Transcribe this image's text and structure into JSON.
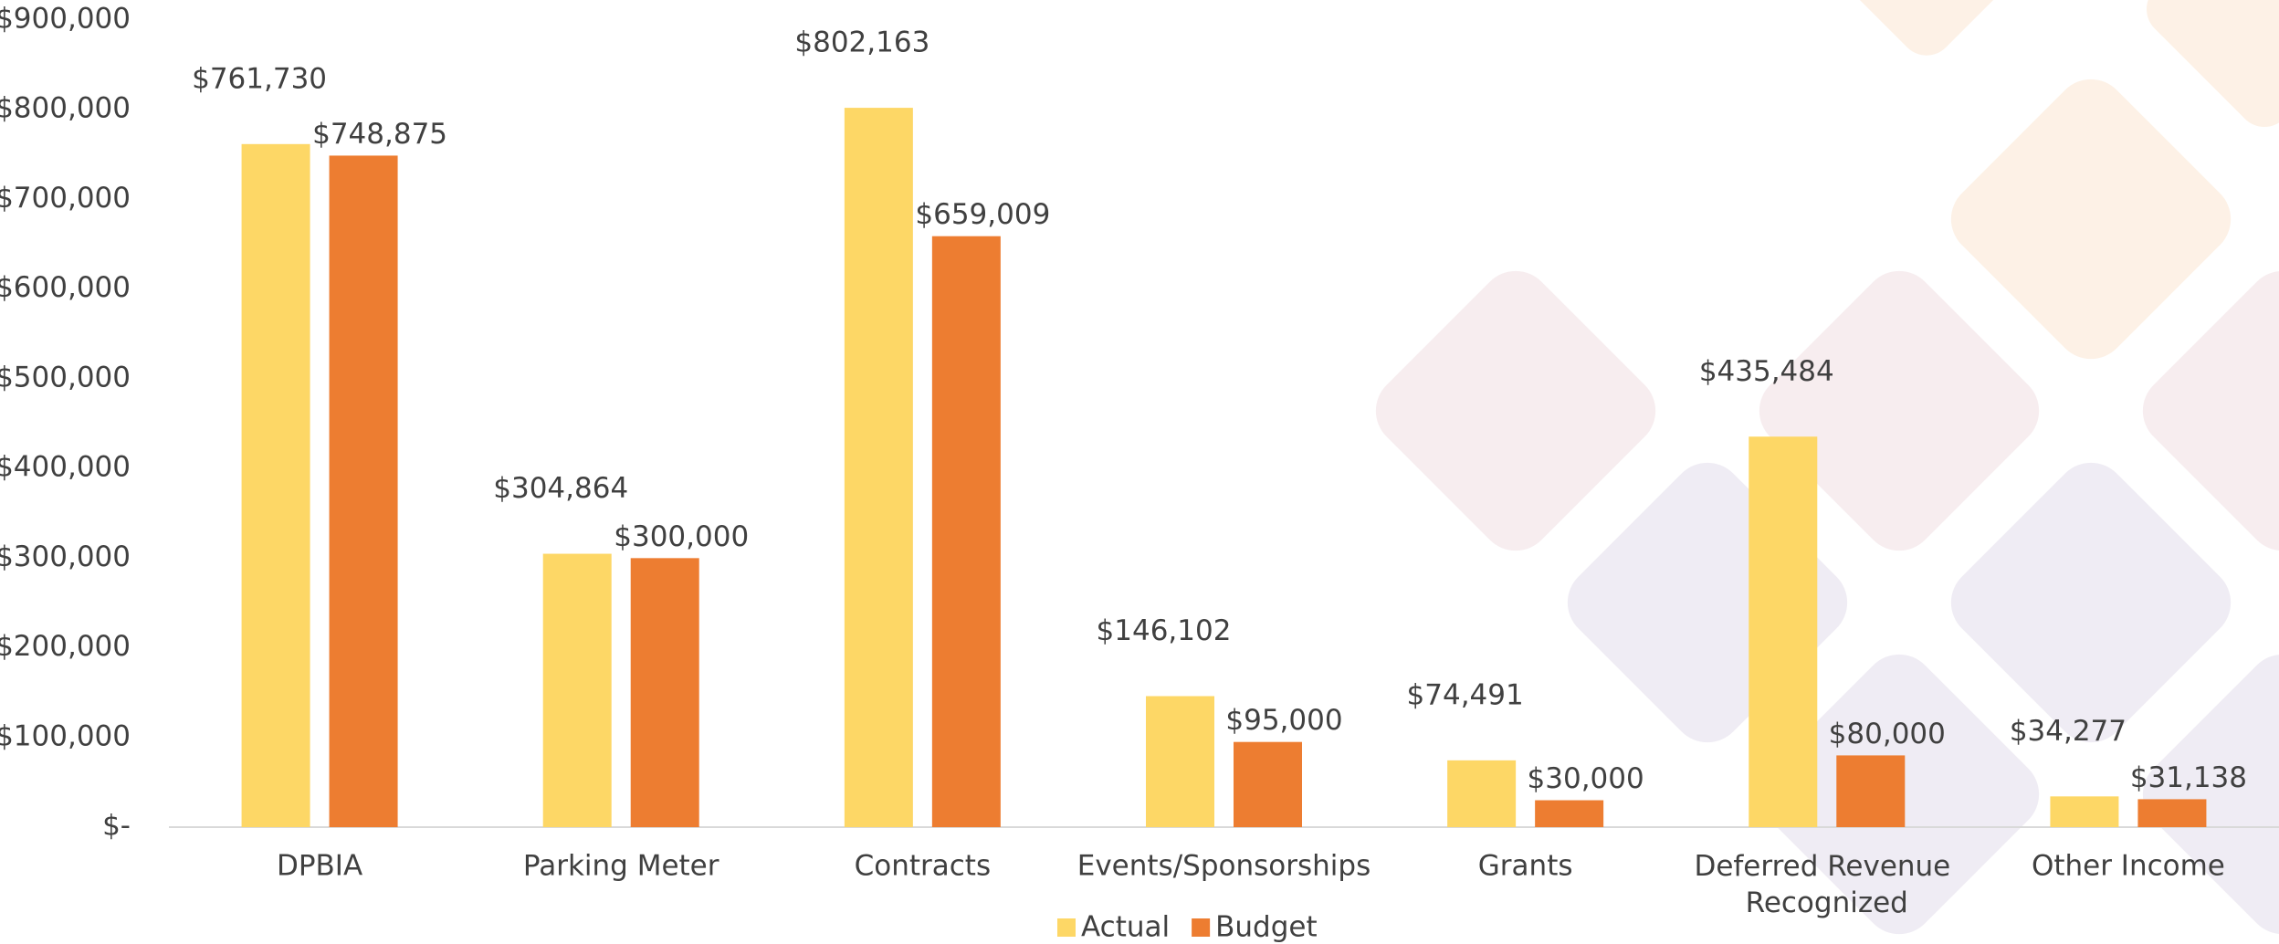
{
  "chart_data": {
    "type": "bar",
    "categories": [
      "DPBIA",
      "Parking Meter",
      "Contracts",
      "Events/Sponsorships",
      "Grants",
      "Deferred Revenue Recognized",
      "Other Income"
    ],
    "series": [
      {
        "name": "Actual",
        "color": "#fdd766",
        "values": [
          761730,
          304864,
          802163,
          146102,
          74491,
          435484,
          34277
        ],
        "value_labels": [
          "$761,730",
          "$304,864",
          "$802,163",
          "$146,102",
          "$74,491",
          "$435,484",
          "$34,277"
        ]
      },
      {
        "name": "Budget",
        "color": "#ed7d31",
        "values": [
          748875,
          300000,
          659009,
          95000,
          30000,
          80000,
          31138
        ],
        "value_labels": [
          "$748,875",
          "$300,000",
          "$659,009",
          "$95,000",
          "$30,000",
          "$80,000",
          "$31,138"
        ]
      }
    ],
    "ylim": [
      0,
      900000
    ],
    "yticks": [
      {
        "value": 0,
        "label": "$-"
      },
      {
        "value": 100000,
        "label": "$100,000"
      },
      {
        "value": 200000,
        "label": "$200,000"
      },
      {
        "value": 300000,
        "label": "$300,000"
      },
      {
        "value": 400000,
        "label": "$400,000"
      },
      {
        "value": 500000,
        "label": "$500,000"
      },
      {
        "value": 600000,
        "label": "$600,000"
      },
      {
        "value": 700000,
        "label": "$700,000"
      },
      {
        "value": 800000,
        "label": "$800,000"
      },
      {
        "value": 900000,
        "label": "$900,000"
      }
    ],
    "grid": false,
    "legend": "bottom"
  }
}
